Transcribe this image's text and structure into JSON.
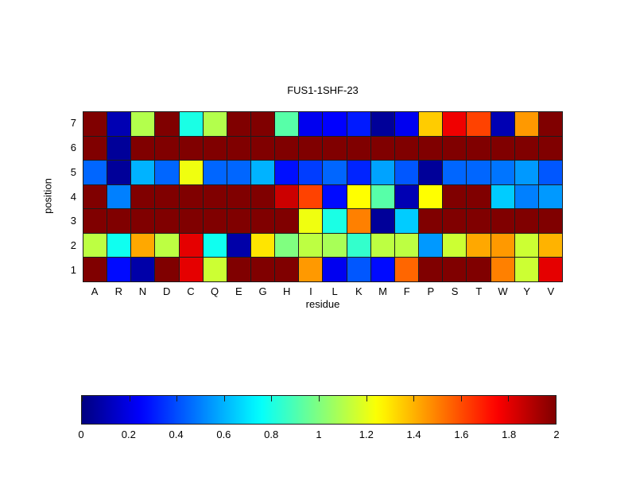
{
  "figure": {
    "title": "FUS1-1SHF-23",
    "xlabel": "residue",
    "ylabel": "position"
  },
  "chart_data": {
    "type": "heatmap",
    "title": "FUS1-1SHF-23",
    "xlabel": "residue",
    "ylabel": "position",
    "colormap": "jet",
    "vmin": 0,
    "vmax": 2,
    "grid": true,
    "columns": [
      "A",
      "R",
      "N",
      "D",
      "C",
      "Q",
      "E",
      "G",
      "H",
      "I",
      "L",
      "K",
      "M",
      "F",
      "P",
      "S",
      "T",
      "W",
      "Y",
      "V"
    ],
    "rows": [
      "7",
      "6",
      "5",
      "4",
      "3",
      "2",
      "1"
    ],
    "values": [
      [
        2.0,
        0.1,
        1.1,
        2.0,
        0.8,
        1.1,
        2.0,
        2.0,
        0.92,
        0.22,
        0.25,
        0.3,
        0.05,
        0.22,
        1.35,
        1.78,
        1.62,
        0.1,
        1.45,
        2.0
      ],
      [
        2.0,
        0.05,
        2.0,
        2.0,
        2.0,
        2.0,
        2.0,
        2.0,
        2.0,
        2.0,
        2.0,
        2.0,
        2.0,
        2.0,
        2.0,
        2.0,
        2.0,
        2.0,
        2.0,
        2.0
      ],
      [
        0.45,
        0.05,
        0.6,
        0.45,
        1.22,
        0.45,
        0.45,
        0.6,
        0.28,
        0.37,
        0.45,
        0.32,
        0.57,
        0.42,
        0.05,
        0.45,
        0.45,
        0.48,
        0.55,
        0.42
      ],
      [
        2.0,
        0.5,
        2.0,
        2.0,
        2.0,
        2.0,
        2.0,
        2.0,
        1.85,
        1.62,
        0.27,
        1.25,
        0.92,
        0.1,
        1.25,
        2.0,
        2.0,
        0.65,
        0.5,
        0.55
      ],
      [
        2.0,
        2.0,
        2.0,
        2.0,
        2.0,
        2.0,
        2.0,
        2.0,
        2.0,
        1.22,
        0.8,
        1.5,
        0.05,
        0.65,
        2.0,
        2.0,
        2.0,
        2.0,
        2.0,
        2.0
      ],
      [
        1.12,
        0.78,
        1.42,
        1.12,
        1.8,
        0.78,
        0.08,
        1.3,
        1.0,
        1.12,
        1.08,
        0.85,
        1.12,
        1.12,
        0.55,
        1.15,
        1.42,
        1.45,
        1.15,
        1.4
      ],
      [
        2.0,
        0.27,
        0.08,
        2.0,
        1.8,
        1.15,
        2.0,
        2.0,
        2.0,
        1.45,
        0.22,
        0.42,
        0.27,
        1.55,
        2.0,
        2.0,
        2.0,
        1.5,
        1.15,
        1.8
      ]
    ],
    "colorbar": {
      "orientation": "horizontal",
      "tick_labels": [
        "0",
        "0.2",
        "0.4",
        "0.6",
        "0.8",
        "1",
        "1.2",
        "1.4",
        "1.6",
        "1.8",
        "2"
      ]
    }
  }
}
